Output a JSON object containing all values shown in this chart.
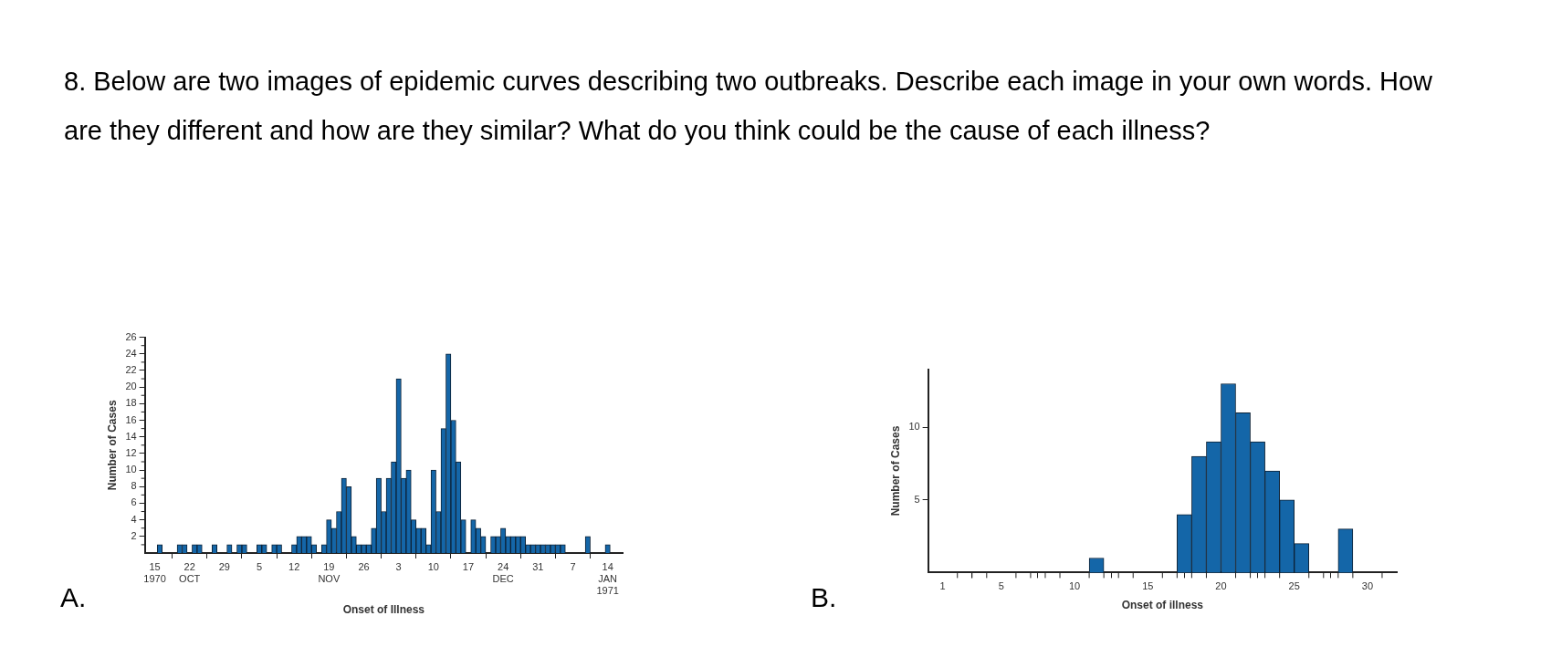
{
  "chart_data": [
    {
      "type": "bar",
      "title": "A.",
      "annotations": [
        "8. Below are two images of epidemic curves describing two outbreaks. Describe each image in your own words. How are they different and how are they similar? What do you think could be the cause of each illness?"
      ],
      "xlabel": "Onset of Illness",
      "ylabel": "Number of Cases",
      "color": "#1466a8",
      "x": [
        "1970-10-16",
        "1970-10-20",
        "1970-10-21",
        "1970-10-23",
        "1970-10-24",
        "1970-10-27",
        "1970-10-30",
        "1970-11-01",
        "1970-11-02",
        "1970-11-05",
        "1970-11-06",
        "1970-11-08",
        "1970-11-09",
        "1970-11-12",
        "1970-11-13",
        "1970-11-14",
        "1970-11-15",
        "1970-11-16",
        "1970-11-18",
        "1970-11-19",
        "1970-11-20",
        "1970-11-21",
        "1970-11-22",
        "1970-11-23",
        "1970-11-24",
        "1970-11-25",
        "1970-11-26",
        "1970-11-27",
        "1970-11-28",
        "1970-11-29",
        "1970-11-30",
        "1970-12-01",
        "1970-12-02",
        "1970-12-03",
        "1970-12-04",
        "1970-12-05",
        "1970-12-06",
        "1970-12-07",
        "1970-12-08",
        "1970-12-09",
        "1970-12-10",
        "1970-12-11",
        "1970-12-12",
        "1970-12-13",
        "1970-12-14",
        "1970-12-15",
        "1970-12-16",
        "1970-12-18",
        "1970-12-19",
        "1970-12-20",
        "1970-12-22",
        "1970-12-23",
        "1970-12-24",
        "1970-12-25",
        "1970-12-26",
        "1970-12-27",
        "1970-12-28",
        "1970-12-29",
        "1970-12-30",
        "1970-12-31",
        "1971-01-01",
        "1971-01-02",
        "1971-01-03",
        "1971-01-04",
        "1971-01-05",
        "1971-01-10",
        "1971-01-14"
      ],
      "values": [
        1,
        1,
        1,
        1,
        1,
        1,
        1,
        1,
        1,
        1,
        1,
        1,
        1,
        1,
        2,
        2,
        2,
        1,
        1,
        4,
        3,
        5,
        9,
        8,
        2,
        1,
        1,
        1,
        3,
        9,
        5,
        9,
        11,
        21,
        9,
        10,
        4,
        3,
        3,
        1,
        10,
        5,
        15,
        24,
        16,
        11,
        4,
        4,
        3,
        2,
        2,
        2,
        3,
        2,
        2,
        2,
        2,
        1,
        1,
        1,
        1,
        1,
        1,
        1,
        1,
        2,
        1
      ],
      "xlim": [
        "1970-10-13",
        "1971-01-17"
      ],
      "xticks": [
        {
          "value": "1970-10-15",
          "label": "15\n1970"
        },
        {
          "value": "1970-10-22",
          "label": "22\nOCT"
        },
        {
          "value": "1970-10-29",
          "label": "29"
        },
        {
          "value": "1970-11-05",
          "label": "5"
        },
        {
          "value": "1970-11-12",
          "label": "12"
        },
        {
          "value": "1970-11-19",
          "label": "19\nNOV"
        },
        {
          "value": "1970-11-26",
          "label": "26"
        },
        {
          "value": "1970-12-03",
          "label": "3"
        },
        {
          "value": "1970-12-10",
          "label": "10"
        },
        {
          "value": "1970-12-17",
          "label": "17"
        },
        {
          "value": "1970-12-24",
          "label": "24\nDEC"
        },
        {
          "value": "1970-12-31",
          "label": "31"
        },
        {
          "value": "1971-01-07",
          "label": "7"
        },
        {
          "value": "1971-01-14",
          "label": "14\nJAN\n1971"
        }
      ],
      "ylim": [
        0,
        26
      ],
      "yticks": [
        {
          "value": 1,
          "label": null
        },
        2,
        {
          "value": 3,
          "label": null
        },
        4,
        {
          "value": 5,
          "label": null
        },
        6,
        {
          "value": 7,
          "label": null
        },
        8,
        {
          "value": 9,
          "label": null
        },
        10,
        {
          "value": 11,
          "label": null
        },
        12,
        {
          "value": 13,
          "label": null
        },
        14,
        {
          "value": 15,
          "label": null
        },
        16,
        {
          "value": 17,
          "label": null
        },
        18,
        {
          "value": 19,
          "label": null
        },
        20,
        {
          "value": 21,
          "label": null
        },
        22,
        {
          "value": 23,
          "label": null
        },
        24,
        {
          "value": 25,
          "label": null
        },
        26
      ]
    },
    {
      "type": "histogram",
      "title": "B.",
      "xlabel": "Onset of illness",
      "ylabel": "Number of Cases",
      "color": "#1466a8",
      "bins": [
        1,
        2,
        3,
        4,
        5,
        6,
        7,
        8,
        9,
        10,
        11,
        12,
        13,
        14,
        15,
        16,
        17,
        18,
        19,
        20,
        21,
        22,
        23,
        24,
        25,
        26,
        27,
        28,
        29,
        30,
        31
      ],
      "values": [
        0,
        0,
        0,
        0,
        0,
        0,
        0,
        0,
        0,
        0,
        1,
        0,
        0,
        0,
        0,
        0,
        4,
        8,
        9,
        13,
        11,
        9,
        7,
        5,
        2,
        0,
        0,
        3,
        0,
        0
      ],
      "xlim": [
        0,
        32
      ],
      "xticks": [
        1,
        {
          "value": 2,
          "label": null
        },
        {
          "value": 3,
          "label": null
        },
        {
          "value": 4,
          "label": null
        },
        5,
        {
          "value": 6,
          "label": null
        },
        {
          "value": 7,
          "label": null
        },
        {
          "value": 8,
          "label": null
        },
        {
          "value": 9,
          "label": null
        },
        10,
        {
          "value": 11,
          "label": null
        },
        {
          "value": 12,
          "label": null
        },
        {
          "value": 13,
          "label": null
        },
        {
          "value": 14,
          "label": null
        },
        15,
        {
          "value": 16,
          "label": null
        },
        {
          "value": 17,
          "label": null
        },
        {
          "value": 18,
          "label": null
        },
        {
          "value": 19,
          "label": null
        },
        20,
        {
          "value": 21,
          "label": null
        },
        {
          "value": 22,
          "label": null
        },
        {
          "value": 23,
          "label": null
        },
        {
          "value": 24,
          "label": null
        },
        25,
        {
          "value": 26,
          "label": null
        },
        {
          "value": 27,
          "label": null
        },
        {
          "value": 28,
          "label": null
        },
        {
          "value": 29,
          "label": null
        },
        30,
        {
          "value": 31,
          "label": null
        }
      ],
      "ylim": [
        0,
        14
      ],
      "yticks": [
        5,
        10
      ]
    }
  ]
}
